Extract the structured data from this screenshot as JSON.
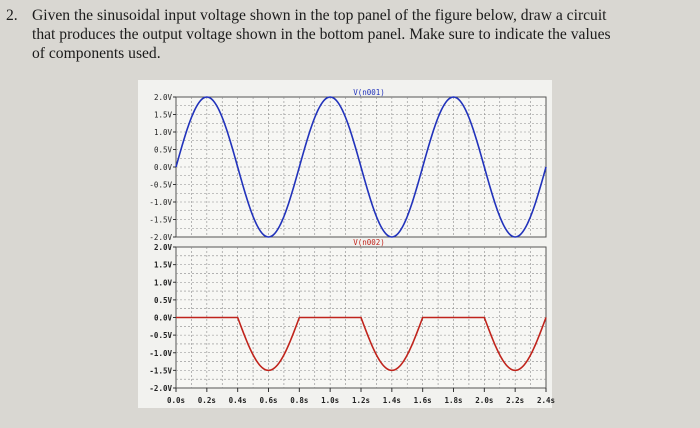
{
  "question": {
    "number": "2.",
    "lines": [
      "Given the sinusoidal input voltage shown in the top panel of the figure below, draw a circuit",
      "that produces the output voltage shown in the bottom panel. Make sure to indicate the values",
      "of components used."
    ]
  },
  "chart_data": [
    {
      "type": "line",
      "title": "V(n001)",
      "x_unit": "s",
      "y_unit": "V",
      "xlim": [
        0.0,
        2.4
      ],
      "ylim": [
        -2.0,
        2.0
      ],
      "y_ticks": [
        "2.0V",
        "1.5V",
        "1.0V",
        "0.5V",
        "0.0V",
        "-0.5V",
        "-1.0V",
        "-1.5V",
        "-2.0V"
      ],
      "grid": true,
      "series": [
        {
          "name": "V(n001)",
          "color": "#2233bb",
          "x": [
            0.0,
            0.1,
            0.2,
            0.3,
            0.4,
            0.5,
            0.6,
            0.7,
            0.8,
            0.9,
            1.0,
            1.1,
            1.2,
            1.3,
            1.4,
            1.5,
            1.6,
            1.7,
            1.8,
            1.9,
            2.0,
            2.1,
            2.2,
            2.3,
            2.4
          ],
          "values": [
            0.0,
            1.41,
            2.0,
            1.41,
            0.0,
            -1.41,
            -2.0,
            -1.41,
            0.0,
            1.41,
            2.0,
            1.41,
            0.0,
            -1.41,
            -2.0,
            -1.41,
            0.0,
            1.41,
            2.0,
            1.41,
            0.0,
            -1.41,
            -2.0,
            -1.41,
            0.0
          ]
        }
      ]
    },
    {
      "type": "line",
      "title": "V(n002)",
      "x_unit": "s",
      "y_unit": "V",
      "xlim": [
        0.0,
        2.4
      ],
      "ylim": [
        -2.0,
        2.0
      ],
      "x_ticks": [
        "0.0s",
        "0.2s",
        "0.4s",
        "0.6s",
        "0.8s",
        "1.0s",
        "1.2s",
        "1.4s",
        "1.6s",
        "1.8s",
        "2.0s",
        "2.2s",
        "2.4s"
      ],
      "y_ticks": [
        "2.0V",
        "1.5V",
        "1.0V",
        "0.5V",
        "0.0V",
        "-0.5V",
        "-1.0V",
        "-1.5V",
        "-2.0V"
      ],
      "grid": true,
      "series": [
        {
          "name": "V(n002)",
          "color": "#c0241c",
          "x": [
            0.0,
            0.4,
            0.5,
            0.6,
            0.7,
            0.8,
            1.2,
            1.3,
            1.4,
            1.5,
            1.6,
            2.0,
            2.4
          ],
          "values": [
            0.0,
            0.0,
            -1.0,
            -1.5,
            -1.0,
            0.0,
            0.0,
            -1.0,
            -1.5,
            -1.0,
            0.0,
            0.0,
            0.0
          ]
        }
      ]
    }
  ]
}
